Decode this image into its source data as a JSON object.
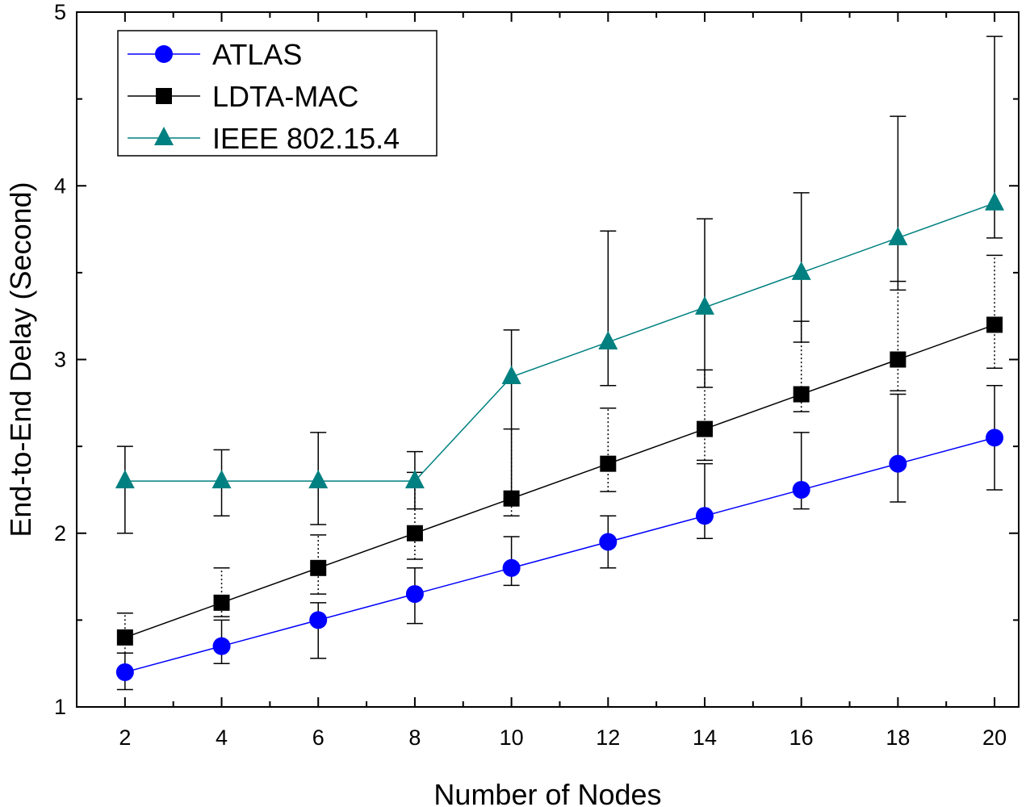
{
  "chart_data": {
    "type": "line",
    "title": "",
    "xlabel": "Number of Nodes",
    "ylabel": "End-to-End Delay (Second)",
    "xlim": [
      1.0,
      20.5
    ],
    "ylim": [
      1,
      5
    ],
    "x_ticks": [
      2,
      4,
      6,
      8,
      10,
      12,
      14,
      16,
      18,
      20
    ],
    "y_ticks": [
      1,
      2,
      3,
      4,
      5
    ],
    "x": [
      2,
      4,
      6,
      8,
      10,
      12,
      14,
      16,
      18,
      20
    ],
    "legend_position": "top-left",
    "grid": false,
    "series": [
      {
        "name": "ATLAS",
        "marker": "circle",
        "color": "#0000ff",
        "values": [
          1.2,
          1.35,
          1.5,
          1.65,
          1.8,
          1.95,
          2.1,
          2.25,
          2.4,
          2.55
        ],
        "err_low": [
          1.1,
          1.25,
          1.28,
          1.48,
          1.7,
          1.8,
          1.97,
          2.14,
          2.18,
          2.25
        ],
        "err_high": [
          1.31,
          1.5,
          1.6,
          1.8,
          1.98,
          2.1,
          2.4,
          2.58,
          2.8,
          2.85
        ],
        "err_style": "solid"
      },
      {
        "name": "LDTA-MAC",
        "marker": "square",
        "color": "#000000",
        "values": [
          1.4,
          1.6,
          1.8,
          2.0,
          2.2,
          2.4,
          2.6,
          2.8,
          3.0,
          3.2
        ],
        "err_low": [
          1.31,
          1.52,
          1.65,
          1.85,
          2.1,
          2.24,
          2.42,
          2.7,
          2.82,
          2.95
        ],
        "err_high": [
          1.54,
          1.8,
          1.99,
          2.35,
          2.6,
          2.72,
          2.94,
          3.22,
          3.45,
          3.6
        ],
        "err_style": "dotted"
      },
      {
        "name": "IEEE 802.15.4",
        "marker": "triangle",
        "color": "#008080",
        "values": [
          2.3,
          2.3,
          2.3,
          2.3,
          2.9,
          3.1,
          3.3,
          3.5,
          3.7,
          3.9
        ],
        "err_low": [
          2.0,
          2.1,
          2.05,
          2.14,
          2.2,
          2.85,
          2.84,
          3.1,
          3.4,
          3.7
        ],
        "err_high": [
          2.5,
          2.48,
          2.58,
          2.47,
          3.17,
          3.74,
          3.81,
          3.96,
          4.4,
          4.86
        ],
        "err_style": "solid"
      }
    ]
  }
}
